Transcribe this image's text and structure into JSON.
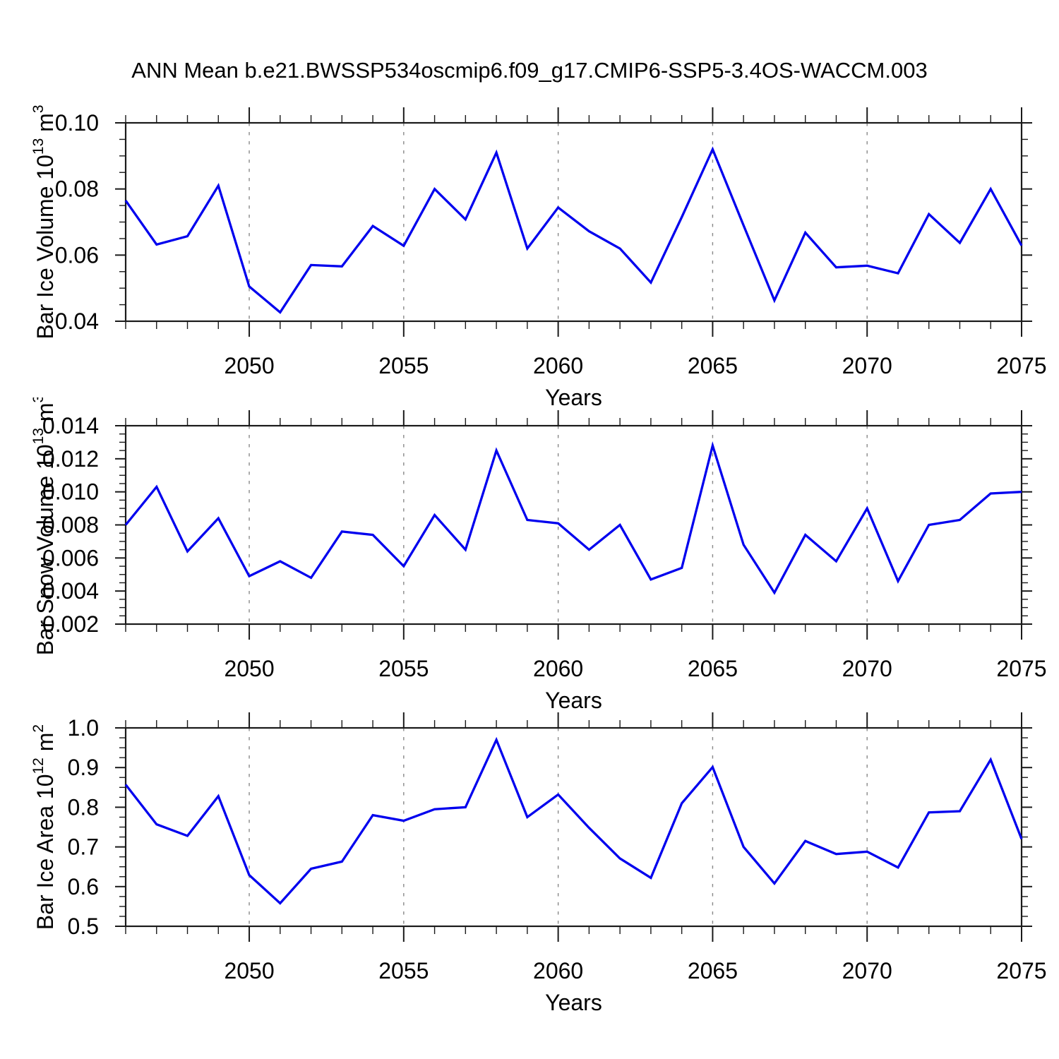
{
  "title": "ANN Mean b.e21.BWSSP534oscmip6.f09_g17.CMIP6-SSP5-3.4OS-WACCM.003",
  "colors": {
    "line": "#0000ee",
    "axis": "#1a1a1a",
    "grid": "#888888",
    "text": "#000000"
  },
  "x_axis": {
    "label": "Years",
    "range": [
      2046,
      2075
    ],
    "years": [
      2046,
      2047,
      2048,
      2049,
      2050,
      2051,
      2052,
      2053,
      2054,
      2055,
      2056,
      2057,
      2058,
      2059,
      2060,
      2061,
      2062,
      2063,
      2064,
      2065,
      2066,
      2067,
      2068,
      2069,
      2070,
      2071,
      2072,
      2073,
      2074,
      2075
    ],
    "major_ticks": [
      2050,
      2055,
      2060,
      2065,
      2070,
      2075
    ],
    "tick_labels": [
      "2050",
      "2055",
      "2060",
      "2065",
      "2070",
      "2075"
    ],
    "minor_step": 1,
    "gridline_years": [
      2050,
      2055,
      2060,
      2065,
      2070
    ]
  },
  "chart_data": [
    {
      "type": "line",
      "name": "bar-ice-volume",
      "ylabel": {
        "prefix": "Bar Ice Volume 10",
        "exponent": "13",
        "unit": " m",
        "unit_exponent": "3"
      },
      "ylim": [
        0.04,
        0.1
      ],
      "y_major_ticks": [
        0.04,
        0.06,
        0.08,
        0.1
      ],
      "y_tick_labels": [
        "0.04",
        "0.06",
        "0.08",
        "0.10"
      ],
      "y_minor_step": 0.005,
      "xlabel": "Years",
      "values": [
        0.0765,
        0.0632,
        0.0657,
        0.081,
        0.0505,
        0.0427,
        0.057,
        0.0566,
        0.0688,
        0.0628,
        0.08,
        0.0708,
        0.091,
        0.062,
        0.0744,
        0.0672,
        0.062,
        0.0517,
        0.0715,
        0.092,
        0.069,
        0.0463,
        0.0668,
        0.0563,
        0.0568,
        0.0545,
        0.0724,
        0.0637,
        0.08,
        0.0629
      ]
    },
    {
      "type": "line",
      "name": "bar-snow-volume",
      "ylabel": {
        "prefix": "Bar Snow Volume 10",
        "exponent": "13",
        "unit": " m",
        "unit_exponent": "3"
      },
      "ylim": [
        0.002,
        0.014
      ],
      "y_major_ticks": [
        0.002,
        0.004,
        0.006,
        0.008,
        0.01,
        0.012,
        0.014
      ],
      "y_tick_labels": [
        "0.002",
        "0.004",
        "0.006",
        "0.008",
        "0.010",
        "0.012",
        "0.014"
      ],
      "y_minor_step": 0.0005,
      "xlabel": "Years",
      "values": [
        0.008,
        0.0103,
        0.0064,
        0.0084,
        0.0049,
        0.0058,
        0.0048,
        0.0076,
        0.0074,
        0.0055,
        0.0086,
        0.0065,
        0.0125,
        0.0083,
        0.0081,
        0.0065,
        0.008,
        0.0047,
        0.0054,
        0.0128,
        0.0068,
        0.0039,
        0.0074,
        0.0058,
        0.009,
        0.0046,
        0.008,
        0.0083,
        0.0099,
        0.01
      ]
    },
    {
      "type": "line",
      "name": "bar-ice-area",
      "ylabel": {
        "prefix": "Bar Ice Area 10",
        "exponent": "12",
        "unit": " m",
        "unit_exponent": "2"
      },
      "ylim": [
        0.5,
        1.0
      ],
      "y_major_ticks": [
        0.5,
        0.6,
        0.7,
        0.8,
        0.9,
        1.0
      ],
      "y_tick_labels": [
        "0.5",
        "0.6",
        "0.7",
        "0.8",
        "0.9",
        "1.0"
      ],
      "y_minor_step": 0.025,
      "xlabel": "Years",
      "values": [
        0.857,
        0.757,
        0.728,
        0.828,
        0.629,
        0.558,
        0.645,
        0.663,
        0.78,
        0.766,
        0.795,
        0.8,
        0.97,
        0.775,
        0.832,
        0.748,
        0.671,
        0.622,
        0.81,
        0.901,
        0.7,
        0.608,
        0.715,
        0.682,
        0.688,
        0.648,
        0.787,
        0.79,
        0.92,
        0.72
      ]
    }
  ]
}
